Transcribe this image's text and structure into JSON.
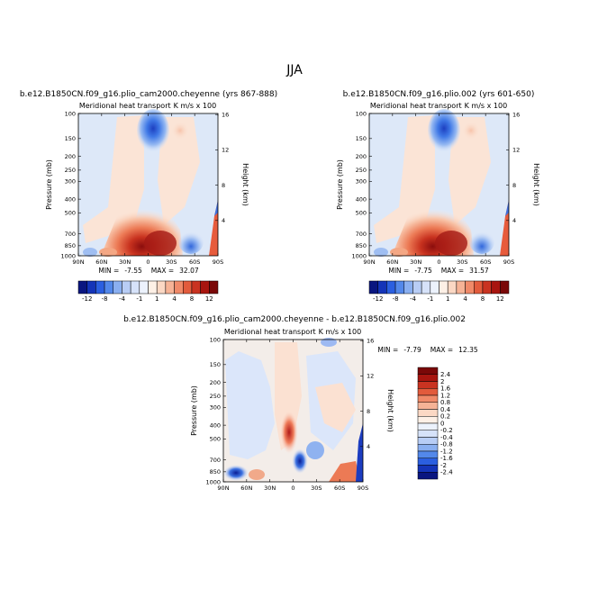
{
  "main_title": "JJA",
  "colors": {
    "neg3": "#0a2299",
    "neg2": "#2a5fe0",
    "neg1": "#8fb3f2",
    "neg0": "#dbe6fa",
    "pos0": "#fce6d8",
    "pos1": "#f6b89c",
    "pos2": "#e2563a",
    "pos3": "#9b1010"
  },
  "chart_data": [
    {
      "type": "heatmap",
      "title": "b.e12.B1850CN.f09_g16.plio_cam2000.cheyenne (yrs 867-888)",
      "variable": "Meridional heat transport",
      "units": "K m/s x 100",
      "ylabel_left": "Pressure (mb)",
      "ylabel_right": "Height (km)",
      "x_ticks": [
        "90N",
        "60N",
        "30N",
        "0",
        "30S",
        "60S",
        "90S"
      ],
      "y_ticks_pressure": [
        "100",
        "150",
        "200",
        "250",
        "300",
        "400",
        "500",
        "700",
        "850",
        "1000"
      ],
      "y_ticks_height": [
        "16",
        "12",
        "8",
        "4"
      ],
      "min_label": "MIN =",
      "min": "-7.55",
      "max_label": "MAX =",
      "max": "32.07",
      "colorbar_levels": [
        "-12",
        "-8",
        "-4",
        "-1",
        "1",
        "4",
        "8",
        "12"
      ],
      "features": [
        {
          "name": "upper-tropical-negative",
          "lat": 2,
          "p": 210,
          "value": -7.55
        },
        {
          "name": "lower-tropical-positive",
          "lat": -5,
          "p": 960,
          "value": 32.07
        },
        {
          "name": "southern-near-surface-negative",
          "lat": -38,
          "p": 920,
          "value": -4
        },
        {
          "name": "southern-edge-positive",
          "lat": -82,
          "p": 800,
          "value": 8
        }
      ]
    },
    {
      "type": "heatmap",
      "title": "b.e12.B1850CN.f09_g16.plio.002 (yrs 601-650)",
      "variable": "Meridional heat transport",
      "units": "K m/s x 100",
      "ylabel_left": "Pressure (mb)",
      "ylabel_right": "Height (km)",
      "x_ticks": [
        "90N",
        "60N",
        "30N",
        "0",
        "30S",
        "60S",
        "90S"
      ],
      "y_ticks_pressure": [
        "100",
        "150",
        "200",
        "250",
        "300",
        "400",
        "500",
        "700",
        "850",
        "1000"
      ],
      "y_ticks_height": [
        "16",
        "12",
        "8",
        "4"
      ],
      "min_label": "MIN =",
      "min": "-7.75",
      "max_label": "MAX =",
      "max": "31.57",
      "colorbar_levels": [
        "-12",
        "-8",
        "-4",
        "-1",
        "1",
        "4",
        "8",
        "12"
      ],
      "features": [
        {
          "name": "upper-tropical-negative",
          "lat": 2,
          "p": 210,
          "value": -7.75
        },
        {
          "name": "lower-tropical-positive",
          "lat": -5,
          "p": 960,
          "value": 31.57
        },
        {
          "name": "southern-near-surface-negative",
          "lat": -38,
          "p": 920,
          "value": -4
        },
        {
          "name": "southern-edge-positive",
          "lat": -82,
          "p": 800,
          "value": 8
        }
      ]
    },
    {
      "type": "heatmap",
      "title": "b.e12.B1850CN.f09_g16.plio_cam2000.cheyenne - b.e12.B1850CN.f09_g16.plio.002",
      "variable": "Meridional heat transport",
      "units": "K m/s x 100",
      "ylabel_left": "Pressure (mb)",
      "ylabel_right": "Height (km)",
      "x_ticks": [
        "90N",
        "60N",
        "30N",
        "0",
        "30S",
        "60S",
        "90S"
      ],
      "y_ticks_pressure": [
        "100",
        "150",
        "200",
        "250",
        "300",
        "400",
        "500",
        "700",
        "850",
        "1000"
      ],
      "y_ticks_height": [
        "16",
        "12",
        "8",
        "4"
      ],
      "min_label": "MIN =",
      "min": "-7.79",
      "max_label": "MAX =",
      "max": "12.35",
      "colorbar_levels": [
        "2.4",
        "2",
        "1.6",
        "1.2",
        "0.8",
        "0.4",
        "0.2",
        "0",
        "-0.2",
        "-0.4",
        "-0.8",
        "-1.2",
        "-1.6",
        "-2",
        "-2.4"
      ],
      "features": [
        {
          "name": "near-equator-surface-positive",
          "lat": 0,
          "p": 750,
          "value": 2.4
        },
        {
          "name": "near-equator-surface-negative",
          "lat": 4,
          "p": 880,
          "value": -2.4
        },
        {
          "name": "northern-surface-negative",
          "lat": 70,
          "p": 960,
          "value": -2.4
        },
        {
          "name": "southern-edge-negative",
          "lat": -82,
          "p": 850,
          "value": -2.4
        },
        {
          "name": "southern-surface-positive",
          "lat": -50,
          "p": 960,
          "value": 1.6
        }
      ]
    }
  ]
}
